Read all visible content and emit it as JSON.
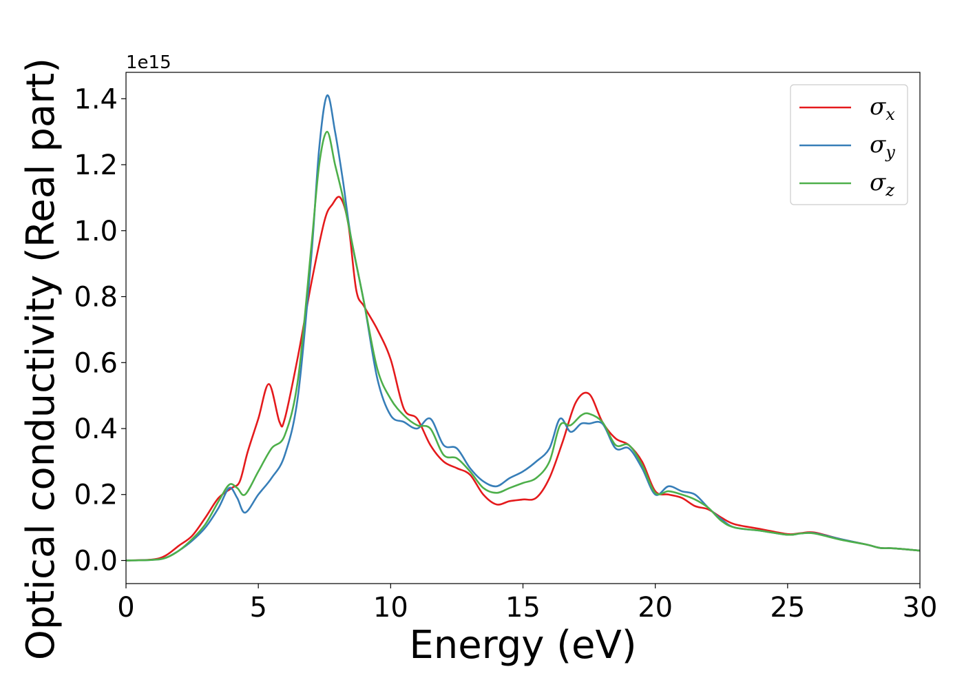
{
  "chart_data": {
    "type": "line",
    "xlabel": "Energy (eV)",
    "ylabel": "Optical conductivity (Real part)",
    "y_offset_label": "1e15",
    "xlim": [
      0,
      30
    ],
    "ylim": [
      -0.07,
      1.48
    ],
    "x_ticks": [
      0,
      5,
      10,
      15,
      20,
      25,
      30
    ],
    "x_tick_labels": [
      "0",
      "5",
      "10",
      "15",
      "20",
      "25",
      "30"
    ],
    "y_ticks": [
      0.0,
      0.2,
      0.4,
      0.6,
      0.8,
      1.0,
      1.2,
      1.4
    ],
    "y_tick_labels": [
      "0.0",
      "0.2",
      "0.4",
      "0.6",
      "0.8",
      "1.0",
      "1.2",
      "1.4"
    ],
    "grid": false,
    "legend_position": "top-right",
    "series": [
      {
        "name": "σx",
        "symbol": "σ",
        "subscript": "x",
        "color": "#e41a1c",
        "x": [
          0,
          1,
          1.5,
          2,
          2.5,
          3,
          3.5,
          4,
          4.3,
          4.6,
          5,
          5.4,
          5.8,
          6,
          6.5,
          7,
          7.5,
          7.8,
          8.1,
          8.4,
          8.7,
          9,
          9.5,
          10,
          10.5,
          11,
          11.5,
          12,
          12.5,
          13,
          13.5,
          14,
          14.5,
          15,
          15.5,
          16,
          16.5,
          17,
          17.5,
          18,
          18.5,
          19,
          19.5,
          20,
          20.5,
          21,
          21.5,
          22,
          22.5,
          23,
          24,
          25,
          25.5,
          26,
          27,
          28,
          28.5,
          29,
          30
        ],
        "y": [
          0.0,
          0.003,
          0.015,
          0.045,
          0.075,
          0.13,
          0.19,
          0.22,
          0.24,
          0.33,
          0.43,
          0.535,
          0.42,
          0.43,
          0.62,
          0.84,
          1.03,
          1.08,
          1.1,
          1.02,
          0.82,
          0.77,
          0.7,
          0.61,
          0.46,
          0.43,
          0.35,
          0.3,
          0.28,
          0.26,
          0.2,
          0.17,
          0.18,
          0.185,
          0.19,
          0.25,
          0.36,
          0.48,
          0.505,
          0.42,
          0.37,
          0.35,
          0.3,
          0.21,
          0.2,
          0.19,
          0.165,
          0.155,
          0.13,
          0.11,
          0.095,
          0.08,
          0.083,
          0.085,
          0.065,
          0.048,
          0.038,
          0.037,
          0.03
        ]
      },
      {
        "name": "σy",
        "symbol": "σ",
        "subscript": "y",
        "color": "#377eb8",
        "x": [
          0,
          1,
          1.5,
          2,
          2.5,
          3,
          3.5,
          3.9,
          4.2,
          4.5,
          5,
          5.5,
          6,
          6.5,
          7,
          7.3,
          7.6,
          7.9,
          8.2,
          8.5,
          9,
          9.5,
          10,
          10.5,
          11,
          11.5,
          12,
          12.5,
          13,
          13.5,
          14,
          14.5,
          15,
          15.5,
          16,
          16.4,
          16.8,
          17.2,
          17.5,
          18,
          18.5,
          19,
          19.5,
          20,
          20.5,
          21,
          21.5,
          22,
          22.5,
          23,
          24,
          25,
          25.5,
          26,
          27,
          28,
          28.5,
          29,
          30
        ],
        "y": [
          0.0,
          0.002,
          0.008,
          0.03,
          0.06,
          0.1,
          0.16,
          0.22,
          0.19,
          0.145,
          0.2,
          0.25,
          0.32,
          0.5,
          0.92,
          1.25,
          1.41,
          1.3,
          1.15,
          0.98,
          0.78,
          0.55,
          0.44,
          0.42,
          0.4,
          0.43,
          0.35,
          0.34,
          0.28,
          0.24,
          0.225,
          0.25,
          0.27,
          0.3,
          0.34,
          0.43,
          0.39,
          0.415,
          0.415,
          0.415,
          0.34,
          0.34,
          0.28,
          0.2,
          0.225,
          0.21,
          0.2,
          0.16,
          0.125,
          0.1,
          0.09,
          0.078,
          0.082,
          0.083,
          0.065,
          0.048,
          0.038,
          0.037,
          0.03
        ]
      },
      {
        "name": "σz",
        "symbol": "σ",
        "subscript": "z",
        "color": "#4daf4a",
        "x": [
          0,
          1,
          1.5,
          2,
          2.5,
          3,
          3.5,
          3.9,
          4.2,
          4.5,
          5,
          5.5,
          6,
          6.5,
          7,
          7.3,
          7.6,
          7.9,
          8.2,
          8.5,
          9,
          9.5,
          10,
          10.5,
          11,
          11.5,
          12,
          12.5,
          13,
          13.5,
          14,
          14.5,
          15,
          15.5,
          16,
          16.4,
          16.8,
          17.2,
          17.5,
          18,
          18.5,
          19,
          19.5,
          20,
          20.5,
          21,
          21.5,
          22,
          22.5,
          23,
          24,
          25,
          25.5,
          26,
          27,
          28,
          28.5,
          29,
          30
        ],
        "y": [
          0.0,
          0.002,
          0.008,
          0.03,
          0.065,
          0.11,
          0.18,
          0.23,
          0.22,
          0.2,
          0.27,
          0.34,
          0.38,
          0.55,
          0.95,
          1.2,
          1.3,
          1.2,
          1.1,
          0.98,
          0.78,
          0.58,
          0.49,
          0.44,
          0.41,
          0.4,
          0.32,
          0.31,
          0.27,
          0.22,
          0.205,
          0.22,
          0.235,
          0.25,
          0.3,
          0.41,
          0.41,
          0.44,
          0.445,
          0.42,
          0.35,
          0.35,
          0.29,
          0.205,
          0.21,
          0.2,
          0.185,
          0.16,
          0.12,
          0.1,
          0.09,
          0.078,
          0.082,
          0.082,
          0.063,
          0.048,
          0.038,
          0.037,
          0.03
        ]
      }
    ]
  }
}
